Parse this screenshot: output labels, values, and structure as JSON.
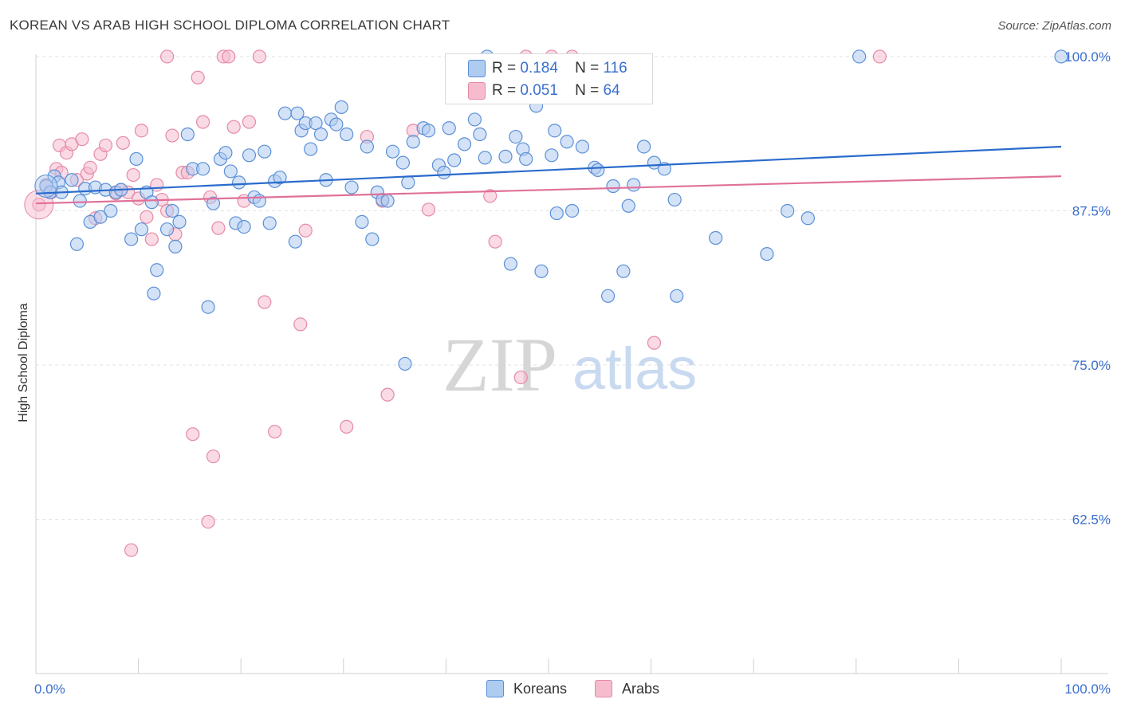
{
  "title": "KOREAN VS ARAB HIGH SCHOOL DIPLOMA CORRELATION CHART",
  "source": "Source: ZipAtlas.com",
  "watermark": {
    "zip": "ZIP",
    "atlas": "atlas"
  },
  "legend": {
    "rows": [
      {
        "r_label": "R =",
        "r_value": "0.184",
        "n_label": "N =",
        "n_value": "116"
      },
      {
        "r_label": "R =",
        "r_value": "0.051",
        "n_label": "N =",
        "n_value": "64"
      }
    ]
  },
  "bottom_legend": {
    "koreans": "Koreans",
    "arabs": "Arabs"
  },
  "colors": {
    "koreans_fill": "#aecbf0",
    "koreans_stroke": "#5b8fd6",
    "koreans_line": "#2a6bcc",
    "arabs_fill": "#f6bccd",
    "arabs_stroke": "#e58aa6",
    "arabs_line": "#e0719a",
    "tick_label": "#3a6fcf",
    "grid": "#e3e3e3"
  },
  "chart_data": {
    "type": "scatter",
    "title": "KOREAN VS ARAB HIGH SCHOOL DIPLOMA CORRELATION CHART",
    "xlabel": "",
    "ylabel": "High School Diploma",
    "xlim": [
      0,
      100
    ],
    "ylim": [
      50,
      102
    ],
    "x_tick_labels": [
      "0.0%",
      "100.0%"
    ],
    "y_ticks": [
      62.5,
      75.0,
      87.5,
      100.0
    ],
    "y_tick_labels": [
      "62.5%",
      "75.0%",
      "87.5%",
      "100.0%"
    ],
    "grid": "horizontal dashed",
    "legend_placement": "top-center",
    "series": [
      {
        "name": "Koreans",
        "r": 0.184,
        "n": 116,
        "trend": {
          "x": [
            0,
            100
          ],
          "y": [
            88.9,
            92.7
          ]
        },
        "points": [
          [
            1.0,
            89.5
          ],
          [
            1.4,
            89.0
          ],
          [
            1.8,
            90.3
          ],
          [
            2.2,
            89.8
          ],
          [
            2.5,
            89.0
          ],
          [
            3.5,
            90.0
          ],
          [
            4.0,
            84.8
          ],
          [
            4.3,
            88.3
          ],
          [
            4.8,
            89.3
          ],
          [
            5.3,
            86.6
          ],
          [
            5.8,
            89.4
          ],
          [
            6.3,
            87.0
          ],
          [
            6.8,
            89.2
          ],
          [
            7.3,
            87.5
          ],
          [
            7.8,
            89.0
          ],
          [
            8.3,
            89.2
          ],
          [
            9.3,
            85.2
          ],
          [
            9.8,
            91.7
          ],
          [
            10.3,
            86.0
          ],
          [
            10.8,
            89.0
          ],
          [
            11.3,
            88.2
          ],
          [
            11.8,
            82.7
          ],
          [
            11.5,
            80.8
          ],
          [
            12.8,
            86.0
          ],
          [
            13.3,
            87.5
          ],
          [
            13.6,
            84.6
          ],
          [
            14.0,
            86.6
          ],
          [
            14.8,
            93.7
          ],
          [
            15.3,
            90.9
          ],
          [
            16.3,
            90.9
          ],
          [
            16.8,
            79.7
          ],
          [
            17.3,
            88.1
          ],
          [
            18.0,
            91.7
          ],
          [
            18.5,
            92.2
          ],
          [
            19.0,
            90.7
          ],
          [
            19.5,
            86.5
          ],
          [
            19.8,
            89.8
          ],
          [
            20.3,
            86.2
          ],
          [
            20.8,
            92.0
          ],
          [
            21.3,
            88.6
          ],
          [
            21.8,
            88.3
          ],
          [
            22.3,
            92.3
          ],
          [
            22.8,
            86.5
          ],
          [
            23.3,
            89.9
          ],
          [
            23.8,
            90.2
          ],
          [
            24.3,
            95.4
          ],
          [
            25.3,
            85.0
          ],
          [
            25.5,
            95.4
          ],
          [
            25.9,
            94.0
          ],
          [
            26.3,
            94.6
          ],
          [
            26.8,
            92.5
          ],
          [
            27.3,
            94.6
          ],
          [
            27.8,
            93.7
          ],
          [
            28.3,
            90.0
          ],
          [
            28.8,
            94.9
          ],
          [
            29.3,
            94.5
          ],
          [
            29.8,
            95.9
          ],
          [
            30.3,
            93.7
          ],
          [
            30.8,
            89.4
          ],
          [
            31.8,
            86.6
          ],
          [
            32.3,
            92.7
          ],
          [
            32.8,
            85.2
          ],
          [
            33.3,
            89.0
          ],
          [
            33.8,
            88.4
          ],
          [
            34.3,
            88.3
          ],
          [
            34.8,
            92.3
          ],
          [
            35.8,
            91.4
          ],
          [
            36.3,
            89.8
          ],
          [
            36.8,
            93.1
          ],
          [
            37.8,
            94.2
          ],
          [
            38.3,
            94.0
          ],
          [
            39.3,
            91.2
          ],
          [
            39.8,
            90.6
          ],
          [
            40.3,
            94.2
          ],
          [
            40.8,
            91.6
          ],
          [
            41.8,
            92.9
          ],
          [
            42.8,
            94.9
          ],
          [
            43.3,
            93.7
          ],
          [
            43.8,
            91.8
          ],
          [
            44.0,
            100.0
          ],
          [
            45.8,
            91.9
          ],
          [
            46.3,
            83.2
          ],
          [
            46.8,
            93.5
          ],
          [
            47.5,
            92.5
          ],
          [
            47.8,
            91.7
          ],
          [
            48.8,
            96.0
          ],
          [
            49.3,
            82.6
          ],
          [
            50.3,
            92.0
          ],
          [
            50.6,
            94.0
          ],
          [
            50.8,
            87.3
          ],
          [
            51.8,
            93.1
          ],
          [
            52.3,
            87.5
          ],
          [
            53.3,
            92.7
          ],
          [
            54.5,
            91.0
          ],
          [
            54.8,
            90.8
          ],
          [
            55.8,
            80.6
          ],
          [
            56.3,
            89.5
          ],
          [
            57.3,
            82.6
          ],
          [
            57.8,
            87.9
          ],
          [
            58.3,
            89.6
          ],
          [
            59.3,
            92.7
          ],
          [
            60.3,
            91.4
          ],
          [
            61.3,
            90.9
          ],
          [
            62.3,
            88.4
          ],
          [
            62.5,
            80.6
          ],
          [
            66.3,
            85.3
          ],
          [
            71.3,
            84.0
          ],
          [
            73.3,
            87.5
          ],
          [
            75.3,
            86.9
          ],
          [
            80.3,
            100.0
          ],
          [
            100.0,
            100.0
          ],
          [
            36.0,
            75.1
          ]
        ]
      },
      {
        "name": "Arabs",
        "r": 0.051,
        "n": 64,
        "trend": {
          "x": [
            0,
            100
          ],
          "y": [
            88.1,
            90.3
          ]
        },
        "points": [
          [
            0.3,
            88.0
          ],
          [
            1.0,
            89.6
          ],
          [
            1.5,
            89.0
          ],
          [
            2.0,
            90.9
          ],
          [
            2.3,
            92.8
          ],
          [
            2.5,
            90.6
          ],
          [
            3.0,
            92.2
          ],
          [
            3.5,
            92.9
          ],
          [
            4.0,
            90.0
          ],
          [
            4.5,
            93.3
          ],
          [
            5.0,
            90.5
          ],
          [
            5.3,
            91.0
          ],
          [
            5.8,
            86.9
          ],
          [
            6.3,
            92.1
          ],
          [
            6.8,
            92.8
          ],
          [
            7.8,
            88.9
          ],
          [
            8.3,
            89.2
          ],
          [
            8.5,
            93.0
          ],
          [
            9.0,
            89.0
          ],
          [
            9.5,
            90.4
          ],
          [
            10.0,
            88.5
          ],
          [
            10.3,
            94.0
          ],
          [
            10.8,
            87.0
          ],
          [
            11.3,
            85.2
          ],
          [
            11.8,
            89.6
          ],
          [
            12.3,
            88.4
          ],
          [
            12.8,
            87.5
          ],
          [
            13.3,
            93.6
          ],
          [
            13.6,
            85.6
          ],
          [
            14.3,
            90.6
          ],
          [
            14.8,
            90.6
          ],
          [
            15.3,
            69.4
          ],
          [
            15.8,
            98.3
          ],
          [
            16.3,
            94.7
          ],
          [
            16.8,
            62.3
          ],
          [
            17.3,
            67.6
          ],
          [
            17.8,
            86.1
          ],
          [
            18.3,
            100.0
          ],
          [
            18.8,
            100.0
          ],
          [
            19.3,
            94.3
          ],
          [
            20.3,
            88.3
          ],
          [
            20.8,
            94.7
          ],
          [
            21.8,
            100.0
          ],
          [
            22.3,
            80.1
          ],
          [
            23.3,
            69.6
          ],
          [
            25.8,
            78.3
          ],
          [
            26.3,
            85.9
          ],
          [
            30.3,
            70.0
          ],
          [
            32.3,
            93.5
          ],
          [
            33.8,
            88.3
          ],
          [
            34.3,
            72.6
          ],
          [
            36.8,
            94.0
          ],
          [
            38.3,
            87.6
          ],
          [
            44.3,
            88.7
          ],
          [
            44.8,
            85.0
          ],
          [
            47.3,
            74.0
          ],
          [
            47.8,
            100.0
          ],
          [
            50.3,
            100.0
          ],
          [
            52.3,
            100.0
          ],
          [
            60.3,
            76.8
          ],
          [
            82.3,
            100.0
          ],
          [
            12.8,
            100.0
          ],
          [
            9.3,
            60.0
          ],
          [
            17.0,
            88.6
          ]
        ]
      }
    ]
  }
}
